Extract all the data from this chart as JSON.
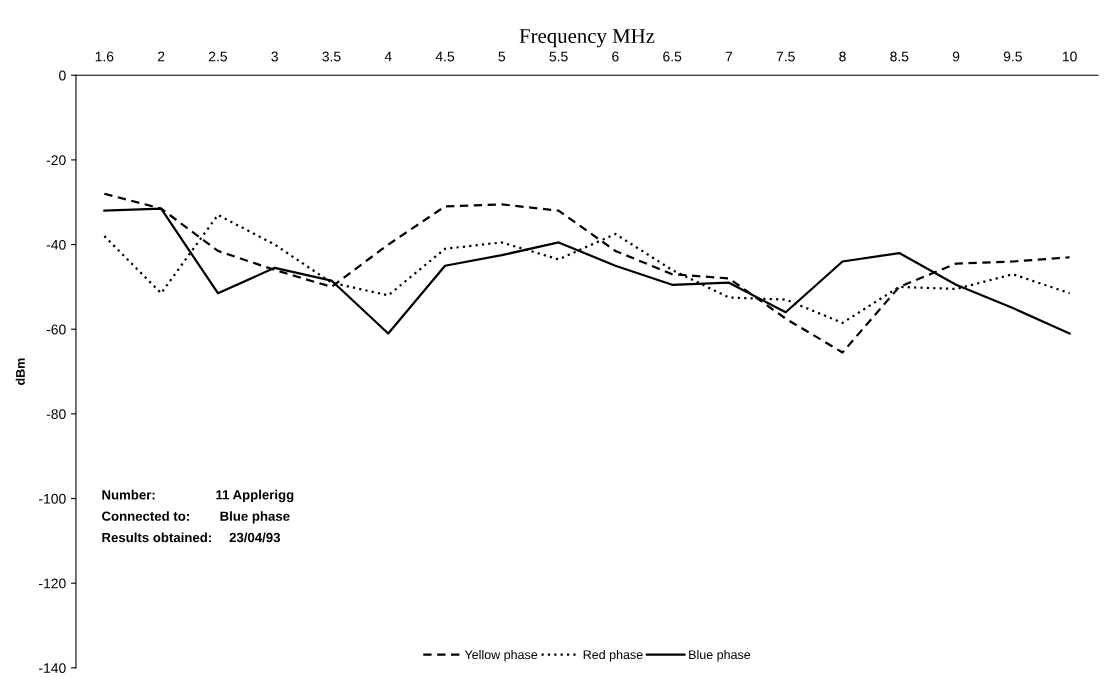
{
  "chart_data": {
    "type": "line",
    "xlabel": "Frequency MHz",
    "ylabel": "dBm",
    "categories": [
      "1.6",
      "2",
      "2.5",
      "3",
      "3.5",
      "4",
      "4.5",
      "5",
      "5.5",
      "6",
      "6.5",
      "7",
      "7.5",
      "8",
      "8.5",
      "9",
      "9.5",
      "10"
    ],
    "series": [
      {
        "name": "Yellow phase",
        "color": "#000000",
        "line_style": "dashed",
        "values": [
          -28,
          -31.5,
          -41.5,
          -46,
          -50,
          -40,
          -31,
          -30.5,
          -32,
          -41.5,
          -47,
          -48,
          -57.5,
          -65.5,
          -50,
          -44.5,
          -44,
          -43
        ]
      },
      {
        "name": "Red phase",
        "color": "#000000",
        "line_style": "dotted",
        "values": [
          -38,
          -51.5,
          -33,
          -40,
          -49,
          -52,
          -41,
          -39.5,
          -43.5,
          -37.5,
          -46,
          -52.5,
          -53,
          -58.5,
          -50,
          -50.5,
          -47,
          -51.5
        ]
      },
      {
        "name": "Blue phase",
        "color": "#000000",
        "line_style": "solid",
        "values": [
          -32,
          -31.5,
          -51.5,
          -45.5,
          -48.5,
          -61,
          -45,
          -42.5,
          -39.5,
          -45,
          -49.5,
          -49,
          -56,
          -44,
          -42,
          -49.5,
          -55,
          -61
        ]
      }
    ],
    "ylim": [
      -140,
      0
    ],
    "yticks": [
      0,
      -20,
      -40,
      -60,
      -80,
      -100,
      -120,
      -140
    ],
    "grid": false,
    "legend": "bottom",
    "marker": "none",
    "annotations": [
      "Number:",
      "11 Applerigg",
      "Connected to:",
      "Blue phase",
      "Results obtained:",
      "23/04/93"
    ]
  }
}
